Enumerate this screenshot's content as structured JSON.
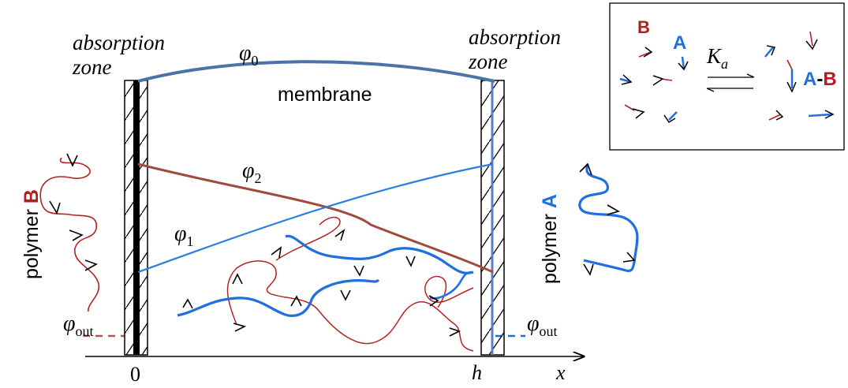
{
  "labels": {
    "absorption_zone_left_1": "absorption",
    "absorption_zone_left_2": "zone",
    "absorption_zone_right_1": "absorption",
    "absorption_zone_right_2": "zone",
    "membrane": "membrane",
    "phi_symbol": "φ",
    "phi0_sub": "0",
    "phi1_sub": "1",
    "phi2_sub": "2",
    "phi_out_sub": "out",
    "polymer_b_word": "polymer ",
    "polymer_b_letter": "B",
    "polymer_a_word": "polymer ",
    "polymer_a_letter": "A",
    "axis_zero": "0",
    "axis_h": "h",
    "axis_x": "x"
  },
  "inset": {
    "label_b": "B",
    "label_a": "A",
    "rate_symbol": "K",
    "rate_sub": "a",
    "product_a": "A",
    "product_dash": "-",
    "product_b": "B"
  },
  "colors": {
    "polymer_a": "#1f6fe0",
    "polymer_b": "#b42323",
    "phi0_line": "#4a74a8",
    "phi2_line": "#a04a3e",
    "phi1_line": "#2d7de0",
    "right_zone_line": "#5b7fc0",
    "label_b_color": "#b01f1f",
    "label_a_color": "#1f6fe0"
  }
}
